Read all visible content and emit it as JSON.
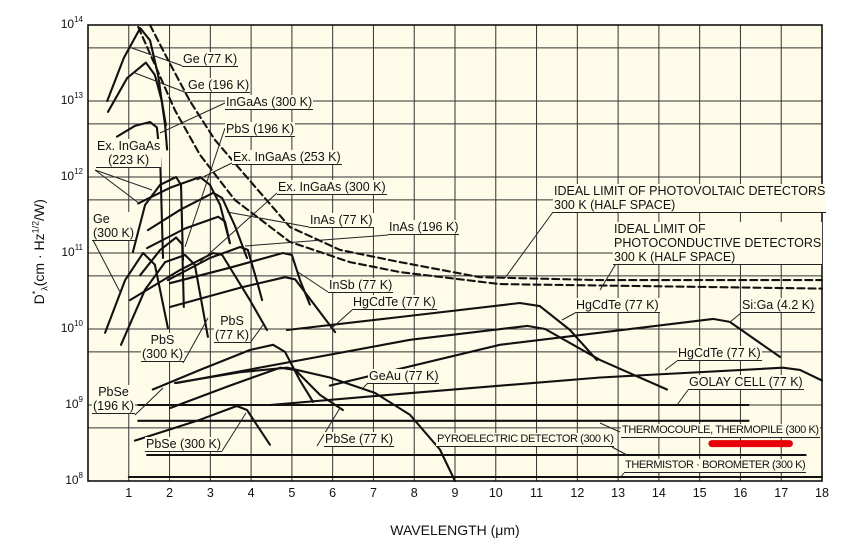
{
  "chart_data": {
    "type": "line",
    "title": "",
    "x_axis": {
      "label": "WAVELENGTH (μm)",
      "range": [
        0,
        18
      ],
      "ticks": [
        1,
        2,
        3,
        4,
        5,
        6,
        7,
        8,
        9,
        10,
        11,
        12,
        13,
        14,
        15,
        16,
        17,
        18
      ],
      "grid": true
    },
    "y_axis": {
      "label_parts": {
        "d": "D",
        "star": "*",
        "lambda": "λ",
        "unit_a": "(cm · Hz",
        "exp": "1/2",
        "unit_b": "/W)"
      },
      "scale": "log",
      "range": [
        100000000.0,
        100000000000000.0
      ],
      "tick_base": "10",
      "tick_exponents": [
        14,
        13,
        12,
        11,
        10,
        9,
        8
      ],
      "grid": true
    },
    "background_color": "#fefbe8",
    "line_color": "#111111",
    "highlight": {
      "x": [
        15.3,
        17.2
      ],
      "y": 310000000.0,
      "color": "#e8000b"
    },
    "series": [
      {
        "label": [
          "Ge (77 K)"
        ],
        "dashed": false,
        "points": [
          [
            0.47,
            10000000000000.0
          ],
          [
            0.88,
            37000000000000.0
          ],
          [
            1.28,
            91000000000000.0
          ],
          [
            1.52,
            63000000000000.0
          ],
          [
            1.72,
            22000000000000.0
          ],
          [
            1.89,
            4800000000000.0
          ],
          [
            1.94,
            2300000000000.0
          ]
        ]
      },
      {
        "label": [
          "Ge (196 K)"
        ],
        "dashed": false,
        "points": [
          [
            0.49,
            7200000000000.0
          ],
          [
            0.96,
            20000000000000.0
          ],
          [
            1.42,
            32000000000000.0
          ],
          [
            1.64,
            22000000000000.0
          ],
          [
            1.81,
            10000000000000.0
          ],
          [
            1.91,
            4800000000000.0
          ]
        ]
      },
      {
        "label": [
          "InGaAs (300 K)"
        ],
        "dashed": false,
        "points": [
          [
            0.71,
            3400000000000.0
          ],
          [
            1.15,
            4700000000000.0
          ],
          [
            1.52,
            5300000000000.0
          ],
          [
            1.69,
            4500000000000.0
          ],
          [
            1.77,
            1700000000000.0
          ],
          [
            1.84,
            86000000000.0
          ]
        ]
      },
      {
        "label": [
          "Ex. InGaAs",
          "(223 K)"
        ],
        "dashed": false,
        "points": [
          [
            1.1,
            103000000000.0
          ],
          [
            1.4,
            430000000000.0
          ],
          [
            1.77,
            790000000000.0
          ],
          [
            2.16,
            1000000000000.0
          ],
          [
            2.28,
            790000000000.0
          ],
          [
            2.33,
            81000000000.0
          ]
        ]
      },
      {
        "label": [
          "Ex. InGaAs (253 K)"
        ],
        "dashed": false,
        "points": [
          [
            1.23,
            450000000000.0
          ],
          [
            2.01,
            720000000000.0
          ],
          [
            2.75,
            1000000000000.0
          ],
          [
            2.99,
            790000000000.0
          ],
          [
            3.24,
            430000000000.0
          ],
          [
            3.48,
            135000000000.0
          ]
        ]
      },
      {
        "label": [
          "Ex. InGaAs (300 K)"
        ],
        "dashed": false,
        "points": [
          [
            1.47,
            200000000000.0
          ],
          [
            2.26,
            370000000000.0
          ],
          [
            3.07,
            620000000000.0
          ],
          [
            3.29,
            530000000000.0
          ],
          [
            3.6,
            230000000000.0
          ],
          [
            3.9,
            86000000000.0
          ]
        ]
      },
      {
        "label": [
          "InAs (77 K)"
        ],
        "dashed": false,
        "points": [
          [
            1.45,
            116000000000.0
          ],
          [
            2.38,
            210000000000.0
          ],
          [
            3.19,
            300000000000.0
          ],
          [
            3.36,
            260000000000.0
          ],
          [
            3.48,
            135000000000.0
          ]
        ]
      },
      {
        "label": [
          "PbS (196 K)"
        ],
        "dashed": false,
        "points": [
          [
            1.28,
            51000000000.0
          ],
          [
            1.77,
            110000000000.0
          ],
          [
            2.16,
            160000000000.0
          ],
          [
            2.31,
            130000000000.0
          ],
          [
            2.35,
            19500000000.0
          ]
        ]
      },
      {
        "label": [
          "Ge",
          "(300 K)"
        ],
        "dashed": false,
        "points": [
          [
            0.42,
            8900000000.0
          ],
          [
            0.91,
            44000000000.0
          ],
          [
            1.35,
            100000000000.0
          ],
          [
            1.64,
            70000000000.0
          ],
          [
            1.96,
            10300000000.0
          ]
        ]
      },
      {
        "label": [
          "PbS",
          "(300 K)"
        ],
        "dashed": false,
        "points": [
          [
            0.81,
            6200000000.0
          ],
          [
            1.4,
            33000000000.0
          ],
          [
            1.89,
            76000000000.0
          ],
          [
            2.38,
            94000000000.0
          ],
          [
            2.62,
            70000000000.0
          ],
          [
            2.94,
            7900000000.0
          ]
        ]
      },
      {
        "label": [
          "InAs (196 K)"
        ],
        "dashed": false,
        "points": [
          [
            1.96,
            44000000000.0
          ],
          [
            2.99,
            86000000000.0
          ],
          [
            3.73,
            120000000000.0
          ],
          [
            3.92,
            110000000000.0
          ],
          [
            4.17,
            38000000000.0
          ],
          [
            4.27,
            24000000000.0
          ]
        ]
      },
      {
        "label": [
          "InSb (77 K)"
        ],
        "dashed": false,
        "points": [
          [
            2.01,
            40000000000.0
          ],
          [
            3.48,
            64000000000.0
          ],
          [
            4.78,
            100000000000.0
          ],
          [
            5.0,
            94000000000.0
          ],
          [
            5.2,
            44000000000.0
          ],
          [
            5.44,
            21000000000.0
          ]
        ]
      },
      {
        "label": [
          "HgCdTe (77 K)"
        ],
        "dashed": false,
        "points": [
          [
            2.01,
            19500000000.0
          ],
          [
            3.73,
            35000000000.0
          ],
          [
            4.83,
            48000000000.0
          ],
          [
            5.08,
            45000000000.0
          ],
          [
            6.06,
            9100000000.0
          ]
        ]
      },
      {
        "label": [
          "PbS",
          "(77 K)"
        ],
        "dashed": false,
        "points": [
          [
            1.03,
            24000000000.0
          ],
          [
            2.26,
            60000000000.0
          ],
          [
            3.07,
            100000000000.0
          ],
          [
            3.29,
            94000000000.0
          ],
          [
            3.97,
            24000000000.0
          ],
          [
            4.39,
            9700000000.0
          ]
        ]
      },
      {
        "label": [
          "PbSe",
          "(196 K)"
        ],
        "dashed": false,
        "points": [
          [
            1.59,
            1600000000.0
          ],
          [
            2.75,
            2900000000.0
          ],
          [
            3.97,
            5300000000.0
          ],
          [
            4.54,
            6200000000.0
          ],
          [
            4.83,
            5000000000.0
          ],
          [
            5.2,
            2100000000.0
          ],
          [
            5.52,
            1100000000.0
          ]
        ]
      },
      {
        "label": [
          "PbSe (77 K)"
        ],
        "dashed": false,
        "points": [
          [
            2.01,
            910000000.0
          ],
          [
            3.48,
            1800000000.0
          ],
          [
            4.71,
            3100000000.0
          ],
          [
            5.08,
            2900000000.0
          ],
          [
            5.69,
            1360000000.0
          ],
          [
            6.25,
            860000000.0
          ]
        ]
      },
      {
        "label": [
          "PbSe (300 K)"
        ],
        "dashed": false,
        "points": [
          [
            1.15,
            340000000.0
          ],
          [
            2.75,
            640000000.0
          ],
          [
            3.65,
            970000000.0
          ],
          [
            3.9,
            860000000.0
          ],
          [
            4.46,
            300000000.0
          ]
        ]
      },
      {
        "label": [
          "GeAu (77 K)"
        ],
        "dashed": false,
        "points": [
          [
            2.13,
            1950000000.0
          ],
          [
            3.73,
            2700000000.0
          ],
          [
            4.88,
            3100000000.0
          ],
          [
            5.93,
            2300000000.0
          ],
          [
            7.04,
            1440000000.0
          ],
          [
            7.9,
            740000000.0
          ],
          [
            8.63,
            260000000.0
          ],
          [
            9.0,
            100000000.0
          ]
        ]
      },
      {
        "label": [
          "HgCdTe (77 K)"
        ],
        "dashed": false,
        "points": [
          [
            4.88,
            9700000000.0
          ],
          [
            7.65,
            14400000000.0
          ],
          [
            10.59,
            22000000000.0
          ],
          [
            11.08,
            20000000000.0
          ],
          [
            11.82,
            9700000000.0
          ],
          [
            12.48,
            3900000000.0
          ]
        ]
      },
      {
        "label": [],
        "dashed": false,
        "points": [
          [
            2.18,
            1950000000.0
          ],
          [
            7.9,
            7200000000.0
          ],
          [
            10.77,
            11000000000.0
          ],
          [
            11.21,
            10000000000.0
          ],
          [
            12.56,
            3900000000.0
          ],
          [
            14.2,
            1600000000.0
          ]
        ]
      },
      {
        "label": [
          "Si:Ga (4.2 K)"
        ],
        "dashed": false,
        "points": [
          [
            5.93,
            1800000000.0
          ],
          [
            10.1,
            6200000000.0
          ],
          [
            15.33,
            13600000000.0
          ],
          [
            15.74,
            12400000000.0
          ],
          [
            16.97,
            4300000000.0
          ]
        ]
      },
      {
        "label": [
          "HgCdTe (77 K)"
        ],
        "dashed": false,
        "points": [
          [
            4.46,
            1000000000.0
          ],
          [
            7.65,
            1400000000.0
          ],
          [
            12.56,
            2300000000.0
          ],
          [
            17.04,
            3100000000.0
          ],
          [
            17.46,
            2900000000.0
          ],
          [
            18.0,
            2100000000.0
          ]
        ]
      },
      {
        "label": [
          "GOLAY CELL (77 K)"
        ],
        "dashed": false,
        "points": [
          [
            1.23,
            1000000000.0
          ],
          [
            16.2,
            1000000000.0
          ]
        ]
      },
      {
        "label": [
          "THERMOCOUPLE, THERMOPILE (300 K)"
        ],
        "dashed": false,
        "points": [
          [
            1.23,
            620000000.0
          ],
          [
            16.2,
            620000000.0
          ]
        ]
      },
      {
        "label": [
          "PYROELECTRIC DETECTOR (300 K)"
        ],
        "dashed": false,
        "points": [
          [
            1.45,
            220000000.0
          ],
          [
            17.6,
            220000000.0
          ]
        ]
      },
      {
        "label": [
          "THERMISTOR · BOROMETER (300 K)"
        ],
        "dashed": false,
        "points": [
          [
            1.0,
            113000000.0
          ],
          [
            18.0,
            113000000.0
          ]
        ]
      },
      {
        "label": [
          "IDEAL LIMIT OF PHOTOVOLTAIC DETECTORS",
          "300 K (HALF SPACE)"
        ],
        "dashed": true,
        "points": [
          [
            1.52,
            100000000000000.0
          ],
          [
            1.96,
            35000000000000.0
          ],
          [
            2.5,
            10000000000000.0
          ],
          [
            3.11,
            3100000000000.0
          ],
          [
            3.85,
            1060000000000.0
          ],
          [
            4.95,
            220000000000.0
          ],
          [
            6.18,
            110000000000.0
          ],
          [
            7.65,
            76000000000.0
          ],
          [
            9.61,
            48000000000.0
          ],
          [
            12.56,
            44000000000.0
          ],
          [
            18.0,
            44000000000.0
          ]
        ]
      },
      {
        "label": [
          "IDEAL LIMIT OF",
          "PHOTOCONDUCTIVE DETECTORS",
          "300 K (HALF SPACE)"
        ],
        "dashed": true,
        "points": [
          [
            1.23,
            94000000000000.0
          ],
          [
            1.64,
            30000000000000.0
          ],
          [
            2.13,
            7600000000000.0
          ],
          [
            2.75,
            1950000000000.0
          ],
          [
            3.6,
            500000000000.0
          ],
          [
            4.95,
            140000000000.0
          ],
          [
            6.42,
            76000000000.0
          ],
          [
            7.65,
            56000000000.0
          ],
          [
            10.1,
            39000000000.0
          ],
          [
            18.0,
            34000000000.0
          ]
        ]
      }
    ]
  }
}
